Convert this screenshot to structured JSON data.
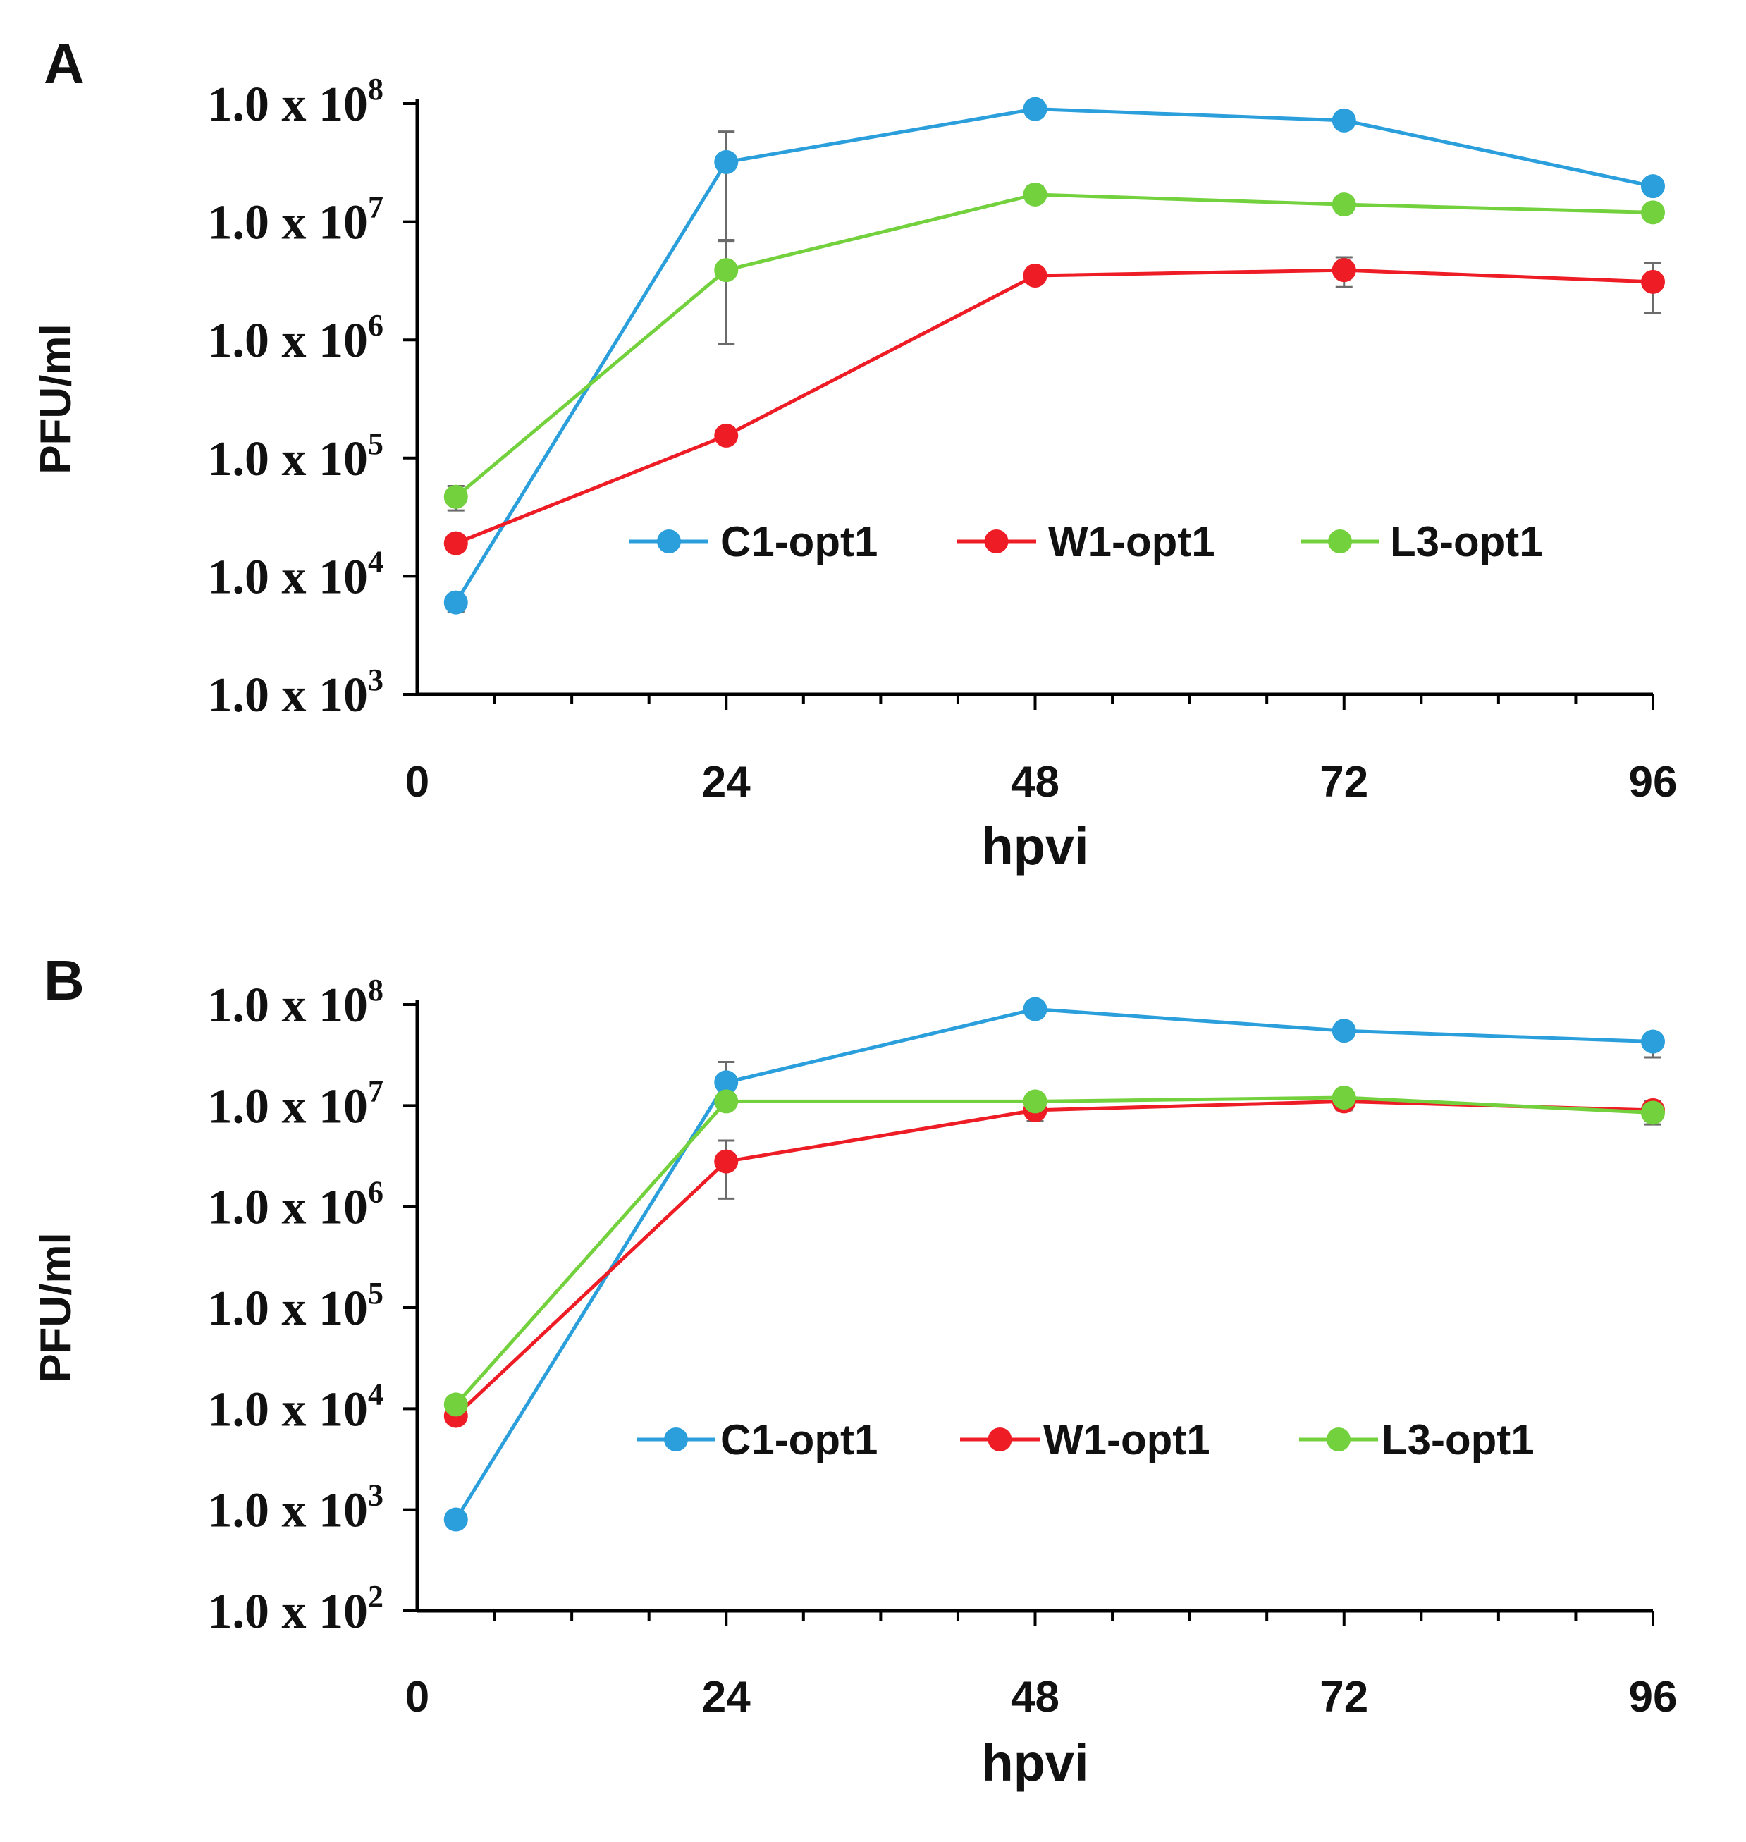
{
  "chart_data": [
    {
      "panel": "A",
      "type": "line",
      "xlabel": "hpvi",
      "ylabel": "PFU/ml",
      "y_scale": "log",
      "ylim": [
        1000,
        100000000
      ],
      "xlim": [
        0,
        96
      ],
      "x_ticks": [
        "0",
        "24",
        "48",
        "72",
        "96"
      ],
      "y_ticks": [
        {
          "base": "1.0 x 10",
          "exp": "8"
        },
        {
          "base": "1.0 x 10",
          "exp": "7"
        },
        {
          "base": "1.0 x 10",
          "exp": "6"
        },
        {
          "base": "1.0 x 10",
          "exp": "5"
        },
        {
          "base": "1.0 x 10",
          "exp": "4"
        },
        {
          "base": "1.0 x 10",
          "exp": "3"
        }
      ],
      "legend_position": "center-right",
      "x": [
        3,
        24,
        48,
        72,
        96
      ],
      "series": [
        {
          "name": "C1-opt1",
          "color": "#2b9fdb",
          "values": [
            6000,
            32000000,
            90000000,
            72000000,
            20000000
          ],
          "err_low": [
            5000,
            7000000,
            78000000,
            68000000,
            18000000
          ],
          "err_high": [
            7000,
            58000000,
            100000000,
            77000000,
            22000000
          ]
        },
        {
          "name": "W1-opt1",
          "color": "#ee1c25",
          "values": [
            19000,
            155000,
            3500000,
            3900000,
            3100000
          ],
          "err_low": [
            17000,
            140000,
            3100000,
            2800000,
            1700000
          ],
          "err_high": [
            21000,
            170000,
            4000000,
            5000000,
            4500000
          ]
        },
        {
          "name": "L3-opt1",
          "color": "#73d13d",
          "values": [
            47000,
            3900000,
            17000000,
            14000000,
            12000000
          ],
          "err_low": [
            36000,
            920000,
            15000000,
            12000000,
            11000000
          ],
          "err_high": [
            58000,
            6800000,
            20000000,
            16000000,
            13000000
          ]
        }
      ]
    },
    {
      "panel": "B",
      "type": "line",
      "xlabel": "hpvi",
      "ylabel": "PFU/ml",
      "y_scale": "log",
      "ylim": [
        100,
        100000000
      ],
      "xlim": [
        0,
        96
      ],
      "x_ticks": [
        "0",
        "24",
        "48",
        "72",
        "96"
      ],
      "y_ticks": [
        {
          "base": "1.0 x 10",
          "exp": "8"
        },
        {
          "base": "1.0 x 10",
          "exp": "7"
        },
        {
          "base": "1.0 x 10",
          "exp": "6"
        },
        {
          "base": "1.0 x 10",
          "exp": "5"
        },
        {
          "base": "1.0 x 10",
          "exp": "4"
        },
        {
          "base": "1.0 x 10",
          "exp": "3"
        },
        {
          "base": "1.0 x 10",
          "exp": "2"
        }
      ],
      "legend_position": "center-right",
      "x": [
        3,
        24,
        48,
        72,
        96
      ],
      "series": [
        {
          "name": "C1-opt1",
          "color": "#2b9fdb",
          "values": [
            800,
            17000000,
            90000000,
            55000000,
            43000000
          ],
          "err_low": [
            700,
            15000000,
            85000000,
            50000000,
            30000000
          ],
          "err_high": [
            900,
            27000000,
            95000000,
            60000000,
            50000000
          ]
        },
        {
          "name": "W1-opt1",
          "color": "#ee1c25",
          "values": [
            8500,
            2800000,
            9000000,
            11000000,
            9000000
          ],
          "err_low": [
            7500,
            1200000,
            7000000,
            9000000,
            7000000
          ],
          "err_high": [
            9500,
            4500000,
            11000000,
            13000000,
            11000000
          ]
        },
        {
          "name": "L3-opt1",
          "color": "#73d13d",
          "values": [
            11000,
            11000000,
            11000000,
            12000000,
            8500000
          ],
          "err_low": [
            10000,
            10000000,
            10000000,
            11000000,
            6500000
          ],
          "err_high": [
            12000,
            12000000,
            12000000,
            13000000,
            9500000
          ]
        }
      ]
    }
  ]
}
